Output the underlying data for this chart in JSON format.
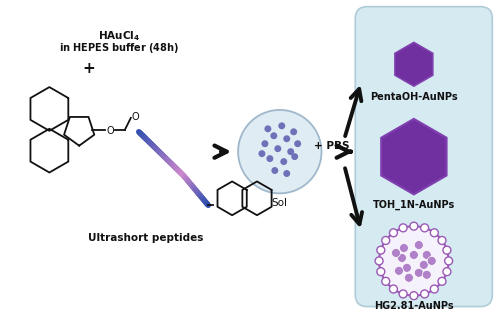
{
  "background_color": "#ffffff",
  "fig_width": 5.0,
  "fig_height": 3.14,
  "dpi": 100,
  "panel_bg": "#d6eaf2",
  "panel_border": "#b0ccd8",
  "hex_color_small": "#7030a0",
  "hex_color_large": "#7030a0",
  "hex_border": "#8040b0",
  "sol_circle_color": "#e0ecf4",
  "sol_circle_border": "#a0b8cc",
  "sol_dot_color": "#7070b8",
  "nano_circle_color": "#f0eef8",
  "nano_ring_dot_color": "#9b59b6",
  "nano_inner_dot_color": "#b080c8",
  "arrow_color": "#111111",
  "text_color": "#111111",
  "label_fontsize": 7.0,
  "text_fontsize": 7.5,
  "hauCl4_line1": "HAuCl",
  "hauCl4_sub": "4",
  "hauCl4_line2": "in HEPES buffer (48h)",
  "plus1_text": "+",
  "plus2_text": "+ PBS",
  "sol_label": "Sol",
  "label1": "PentaOH-AuNPs",
  "label2": "TOH_1N-AuNPs",
  "label3": "HG2.81-AuNPs",
  "ultrashort_label": "Ultrashort peptides",
  "peptide_color_blue": "#3050b0",
  "peptide_color_pink": "#cc88cc",
  "fmoc_color": "#111111",
  "lw_struct": 1.3
}
